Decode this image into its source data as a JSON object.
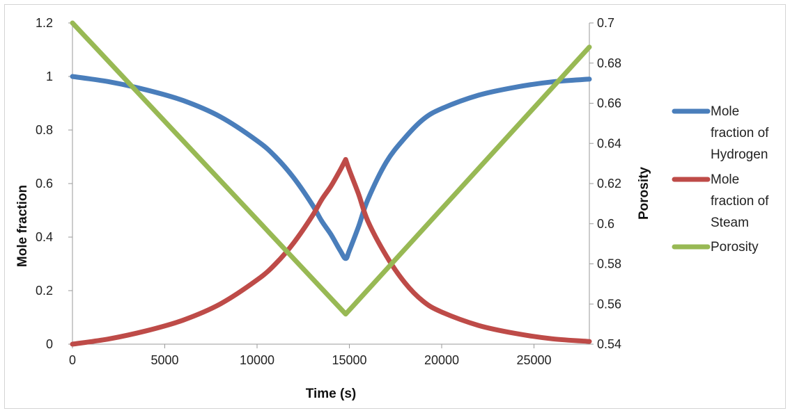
{
  "chart_data": {
    "type": "line",
    "xlabel": "Time (s)",
    "ylabel": "Mole fraction",
    "y2label": "Porosity",
    "xlim": [
      0,
      28000
    ],
    "ylim": [
      0,
      1.2
    ],
    "y2lim": [
      0.54,
      0.7
    ],
    "x_ticks": [
      0,
      5000,
      10000,
      15000,
      20000,
      25000
    ],
    "y_ticks": [
      0,
      0.2,
      0.4,
      0.6,
      0.8,
      1,
      1.2
    ],
    "y2_ticks": [
      0.54,
      0.56,
      0.58,
      0.6,
      0.62,
      0.64,
      0.66,
      0.68,
      0.7
    ],
    "grid": false,
    "legend_position": "right",
    "series": [
      {
        "name": "Mole fraction of Hydrogen",
        "axis": "left",
        "color": "#4a7ebb",
        "x": [
          0,
          2000,
          4000,
          6000,
          8000,
          10000,
          11000,
          12000,
          13000,
          13500,
          14000,
          14500,
          14800,
          15000,
          15500,
          16000,
          17000,
          18000,
          19000,
          20000,
          22000,
          24000,
          26000,
          28000
        ],
        "y": [
          1.0,
          0.98,
          0.95,
          0.91,
          0.85,
          0.76,
          0.7,
          0.62,
          0.52,
          0.46,
          0.41,
          0.35,
          0.32,
          0.35,
          0.44,
          0.54,
          0.68,
          0.77,
          0.84,
          0.88,
          0.93,
          0.96,
          0.98,
          0.99
        ]
      },
      {
        "name": "Mole fraction of Steam",
        "axis": "left",
        "color": "#be4b48",
        "x": [
          0,
          2000,
          4000,
          6000,
          8000,
          10000,
          11000,
          12000,
          13000,
          13500,
          14000,
          14500,
          14800,
          15000,
          15500,
          16000,
          17000,
          18000,
          19000,
          20000,
          22000,
          24000,
          26000,
          28000
        ],
        "y": [
          0.0,
          0.02,
          0.05,
          0.09,
          0.15,
          0.24,
          0.3,
          0.38,
          0.48,
          0.54,
          0.59,
          0.65,
          0.69,
          0.65,
          0.56,
          0.46,
          0.33,
          0.23,
          0.16,
          0.12,
          0.07,
          0.04,
          0.02,
          0.01
        ]
      },
      {
        "name": "Porosity",
        "axis": "right",
        "color": "#98b954",
        "x": [
          0,
          14800,
          28000
        ],
        "y": [
          0.7,
          0.555,
          0.688
        ]
      }
    ]
  }
}
